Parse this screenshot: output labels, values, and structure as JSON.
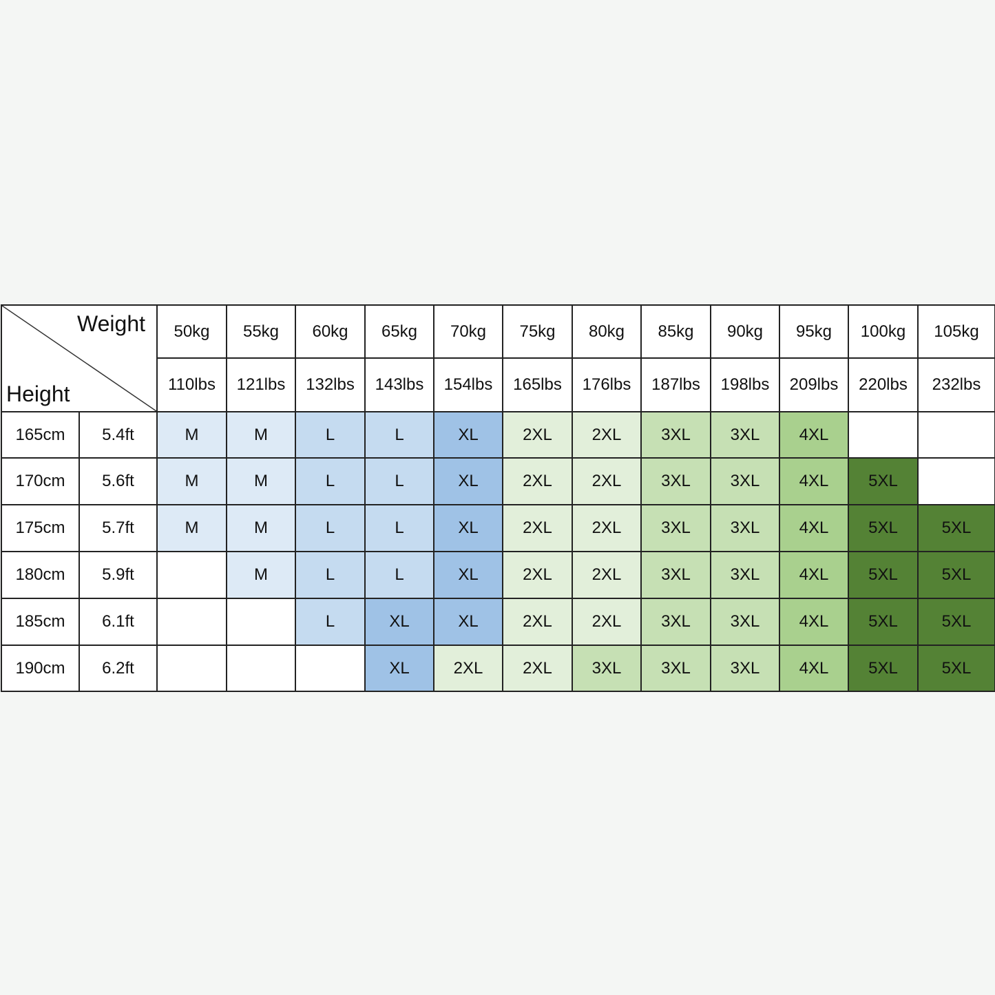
{
  "header": {
    "weight_label": "Weight",
    "height_label": "Height"
  },
  "weights_kg": [
    "50kg",
    "55kg",
    "60kg",
    "65kg",
    "70kg",
    "75kg",
    "80kg",
    "85kg",
    "90kg",
    "95kg",
    "100kg",
    "105kg"
  ],
  "weights_lbs": [
    "110lbs",
    "121lbs",
    "132lbs",
    "143lbs",
    "154lbs",
    "165lbs",
    "176lbs",
    "187lbs",
    "198lbs",
    "209lbs",
    "220lbs",
    "232lbs"
  ],
  "rows": [
    {
      "cm": "165cm",
      "ft": "5.4ft",
      "sizes": [
        "M",
        "M",
        "L",
        "L",
        "XL",
        "2XL",
        "2XL",
        "3XL",
        "3XL",
        "4XL",
        "",
        ""
      ]
    },
    {
      "cm": "170cm",
      "ft": "5.6ft",
      "sizes": [
        "M",
        "M",
        "L",
        "L",
        "XL",
        "2XL",
        "2XL",
        "3XL",
        "3XL",
        "4XL",
        "5XL",
        ""
      ]
    },
    {
      "cm": "175cm",
      "ft": "5.7ft",
      "sizes": [
        "M",
        "M",
        "L",
        "L",
        "XL",
        "2XL",
        "2XL",
        "3XL",
        "3XL",
        "4XL",
        "5XL",
        "5XL"
      ]
    },
    {
      "cm": "180cm",
      "ft": "5.9ft",
      "sizes": [
        "",
        "M",
        "L",
        "L",
        "XL",
        "2XL",
        "2XL",
        "3XL",
        "3XL",
        "4XL",
        "5XL",
        "5XL"
      ]
    },
    {
      "cm": "185cm",
      "ft": "6.1ft",
      "sizes": [
        "",
        "",
        "L",
        "XL",
        "XL",
        "2XL",
        "2XL",
        "3XL",
        "3XL",
        "4XL",
        "5XL",
        "5XL"
      ]
    },
    {
      "cm": "190cm",
      "ft": "6.2ft",
      "sizes": [
        "",
        "",
        "",
        "XL",
        "2XL",
        "2XL",
        "3XL",
        "3XL",
        "3XL",
        "4XL",
        "5XL",
        "5XL"
      ]
    }
  ],
  "size_colors": {
    "M": "#ddeaf6",
    "L": "#c5dbf0",
    "XL": "#9fc2e6",
    "2XL": "#e2efda",
    "3XL": "#c6e0b4",
    "4XL": "#a9d08e",
    "5XL": "#548235"
  }
}
